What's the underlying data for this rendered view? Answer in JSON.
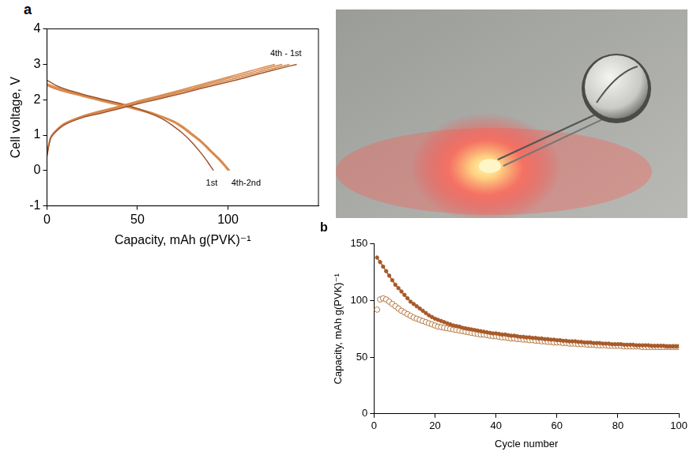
{
  "chart_data": [
    {
      "type": "line",
      "panel_label": "a",
      "x_label": "Capacity, mAh g(PVK)⁻¹",
      "y_label": "Cell voltage, V",
      "xlim": [
        0,
        150
      ],
      "xticks": [
        0,
        50,
        100
      ],
      "ylim": [
        -1,
        4
      ],
      "yticks": [
        -1,
        0,
        1,
        2,
        3,
        4
      ],
      "grid": false,
      "series": [
        {
          "color": "#a0522d",
          "marker": "none",
          "line_style": "solid",
          "x": [
            0,
            2,
            5,
            10,
            20,
            30,
            40,
            50,
            60,
            70,
            80,
            90,
            100,
            110,
            120,
            130,
            138
          ],
          "values": [
            0.4,
            0.9,
            1.1,
            1.3,
            1.5,
            1.62,
            1.75,
            1.88,
            2.0,
            2.12,
            2.25,
            2.38,
            2.5,
            2.63,
            2.77,
            2.9,
            3.0
          ]
        },
        {
          "color": "#d9894a",
          "marker": "none",
          "line_style": "solid",
          "x": [
            0,
            2,
            5,
            10,
            20,
            30,
            40,
            50,
            60,
            70,
            80,
            90,
            100,
            110,
            120,
            134
          ],
          "values": [
            0.45,
            0.92,
            1.12,
            1.32,
            1.52,
            1.65,
            1.78,
            1.91,
            2.03,
            2.16,
            2.29,
            2.42,
            2.55,
            2.68,
            2.82,
            3.0
          ]
        },
        {
          "color": "#d9894a",
          "marker": "none",
          "line_style": "solid",
          "x": [
            0,
            2,
            5,
            10,
            20,
            30,
            40,
            50,
            60,
            70,
            80,
            90,
            100,
            110,
            120,
            130
          ],
          "values": [
            0.45,
            0.93,
            1.13,
            1.33,
            1.54,
            1.67,
            1.8,
            1.93,
            2.06,
            2.19,
            2.32,
            2.46,
            2.6,
            2.73,
            2.87,
            3.0
          ]
        },
        {
          "color": "#d9894a",
          "marker": "none",
          "line_style": "solid",
          "x": [
            0,
            2,
            5,
            10,
            20,
            30,
            40,
            50,
            60,
            70,
            80,
            90,
            100,
            110,
            120,
            126
          ],
          "values": [
            0.45,
            0.94,
            1.14,
            1.34,
            1.55,
            1.69,
            1.82,
            1.96,
            2.09,
            2.22,
            2.36,
            2.5,
            2.64,
            2.78,
            2.92,
            3.0
          ]
        },
        {
          "color": "#a0522d",
          "marker": "none",
          "line_style": "solid",
          "x": [
            0,
            5,
            10,
            20,
            30,
            40,
            50,
            60,
            65,
            70,
            75,
            80,
            85,
            88,
            90,
            92
          ],
          "values": [
            2.55,
            2.4,
            2.3,
            2.15,
            2.02,
            1.9,
            1.75,
            1.55,
            1.42,
            1.25,
            1.05,
            0.8,
            0.5,
            0.3,
            0.15,
            0
          ]
        },
        {
          "color": "#d9894a",
          "marker": "none",
          "line_style": "solid",
          "x": [
            0,
            5,
            10,
            20,
            30,
            40,
            50,
            60,
            70,
            75,
            80,
            85,
            90,
            95,
            98,
            101
          ],
          "values": [
            2.45,
            2.35,
            2.27,
            2.13,
            2.0,
            1.88,
            1.75,
            1.6,
            1.4,
            1.25,
            1.05,
            0.85,
            0.6,
            0.35,
            0.18,
            0
          ]
        },
        {
          "color": "#d9894a",
          "marker": "none",
          "line_style": "solid",
          "x": [
            0,
            5,
            10,
            20,
            30,
            40,
            50,
            60,
            70,
            75,
            80,
            85,
            90,
            95,
            98,
            100.5
          ],
          "values": [
            2.42,
            2.32,
            2.25,
            2.11,
            1.98,
            1.86,
            1.73,
            1.58,
            1.38,
            1.22,
            1.02,
            0.82,
            0.57,
            0.32,
            0.15,
            0
          ]
        },
        {
          "color": "#d9894a",
          "marker": "none",
          "line_style": "solid",
          "x": [
            0,
            5,
            10,
            20,
            30,
            40,
            50,
            60,
            70,
            75,
            80,
            85,
            90,
            95,
            98,
            100
          ],
          "values": [
            2.4,
            2.3,
            2.22,
            2.09,
            1.96,
            1.84,
            1.71,
            1.56,
            1.36,
            1.2,
            1.0,
            0.8,
            0.55,
            0.3,
            0.13,
            0
          ]
        }
      ],
      "annotations": [
        {
          "text": "4th - 1st",
          "x": 132,
          "y": 3.3
        },
        {
          "text": "1st",
          "x": 91,
          "y": -0.35
        },
        {
          "text": "4th-2nd",
          "x": 110,
          "y": -0.35
        }
      ]
    },
    {
      "type": "line",
      "panel_label": "b",
      "x_label": "Cycle number",
      "y_label": "Capacity, mAh g(PVK)⁻¹",
      "xlim": [
        0,
        100
      ],
      "xticks": [
        0,
        20,
        40,
        60,
        80,
        100
      ],
      "ylim": [
        0,
        150
      ],
      "yticks": [
        0,
        50,
        100,
        150
      ],
      "grid": false,
      "series": [
        {
          "color": "#a85a2a",
          "marker": "circle",
          "line_style": "solid",
          "x": [
            1,
            2,
            3,
            4,
            5,
            6,
            7,
            8,
            9,
            10,
            11,
            12,
            13,
            14,
            15,
            16,
            17,
            18,
            19,
            20,
            21,
            22,
            23,
            24,
            25,
            26,
            27,
            28,
            29,
            30,
            31,
            32,
            33,
            34,
            35,
            36,
            37,
            38,
            39,
            40,
            41,
            42,
            43,
            44,
            45,
            46,
            47,
            48,
            49,
            50,
            51,
            52,
            53,
            54,
            55,
            56,
            57,
            58,
            59,
            60,
            61,
            62,
            63,
            64,
            65,
            66,
            67,
            68,
            69,
            70,
            71,
            72,
            73,
            74,
            75,
            76,
            77,
            78,
            79,
            80,
            81,
            82,
            83,
            84,
            85,
            86,
            87,
            88,
            89,
            90,
            91,
            92,
            93,
            94,
            95,
            96,
            97,
            98,
            99,
            100
          ],
          "values": [
            138,
            134,
            130,
            126,
            122,
            118,
            114,
            111,
            108,
            105,
            102,
            99,
            97,
            95,
            93,
            91,
            89,
            87,
            85.5,
            84,
            83,
            82,
            81,
            80,
            79,
            78,
            77.5,
            77,
            76,
            75.5,
            75,
            74.5,
            74,
            73.5,
            73,
            72.5,
            72,
            71.5,
            71,
            71,
            70.5,
            70,
            70,
            69.5,
            69,
            69,
            68.5,
            68,
            68,
            67.5,
            67.5,
            67,
            67,
            66.5,
            66.5,
            66,
            66,
            65.5,
            65.5,
            65,
            65,
            64.5,
            64.5,
            64,
            64,
            64,
            63.5,
            63.5,
            63,
            63,
            63,
            62.5,
            62.5,
            62.5,
            62,
            62,
            62,
            61.5,
            61.5,
            61.5,
            61.5,
            61,
            61,
            61,
            61,
            60.5,
            60.5,
            60.5,
            60.5,
            60.5,
            60,
            60,
            60,
            60,
            60,
            59.5,
            59.5,
            59.5,
            59.5,
            59.5
          ]
        },
        {
          "color": "#b5773f",
          "marker": "open_circle",
          "line_style": "none",
          "x": [
            1,
            2,
            3,
            4,
            5,
            6,
            7,
            8,
            9,
            10,
            11,
            12,
            13,
            14,
            15,
            16,
            17,
            18,
            19,
            20,
            21,
            22,
            23,
            24,
            25,
            26,
            27,
            28,
            29,
            30,
            31,
            32,
            33,
            34,
            35,
            36,
            37,
            38,
            39,
            40,
            41,
            42,
            43,
            44,
            45,
            46,
            47,
            48,
            49,
            50,
            51,
            52,
            53,
            54,
            55,
            56,
            57,
            58,
            59,
            60,
            61,
            62,
            63,
            64,
            65,
            66,
            67,
            68,
            69,
            70,
            71,
            72,
            73,
            74,
            75,
            76,
            77,
            78,
            79,
            80,
            81,
            82,
            83,
            84,
            85,
            86,
            87,
            88,
            89,
            90,
            91,
            92,
            93,
            94,
            95,
            96,
            97,
            98,
            99,
            100
          ],
          "values": [
            92,
            101,
            102,
            101,
            99,
            97,
            95,
            93,
            91,
            89.5,
            88,
            86.5,
            85,
            84,
            83,
            82,
            81,
            80,
            79,
            78,
            77,
            76.5,
            76,
            75.5,
            75,
            74.5,
            74,
            73.5,
            73,
            72.5,
            72,
            71.5,
            71,
            70.5,
            70,
            70,
            69.5,
            69,
            68.5,
            68.5,
            68,
            67.5,
            67.5,
            67,
            66.5,
            66.5,
            66,
            66,
            65.5,
            65.5,
            65,
            65,
            64.5,
            64.5,
            64,
            64,
            63.5,
            63.5,
            63,
            63,
            63,
            62.5,
            62.5,
            62,
            62,
            62,
            61.5,
            61.5,
            61.5,
            61,
            61,
            61,
            60.5,
            60.5,
            60.5,
            60.5,
            60,
            60,
            60,
            60,
            60,
            59.5,
            59.5,
            59.5,
            59.5,
            59.5,
            59.5,
            59,
            59,
            59,
            59,
            59,
            59,
            59,
            59,
            59,
            59,
            59,
            59,
            59
          ]
        }
      ]
    }
  ]
}
